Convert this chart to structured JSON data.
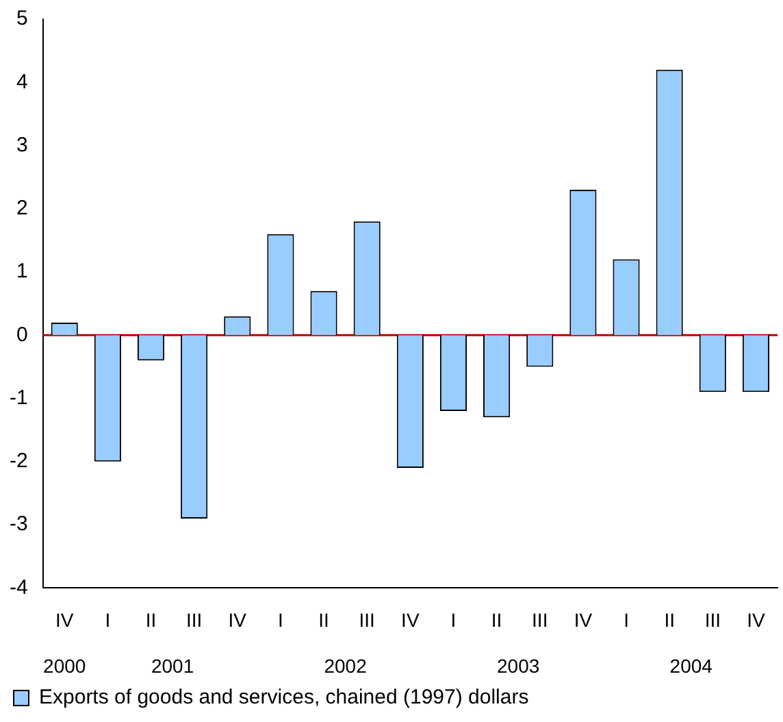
{
  "chart_data": {
    "type": "bar",
    "categories": [
      "IV",
      "I",
      "II",
      "III",
      "IV",
      "I",
      "II",
      "III",
      "IV",
      "I",
      "II",
      "III",
      "IV",
      "I",
      "II",
      "III",
      "IV"
    ],
    "series": [
      {
        "name": "Exports of goods and services, chained (1997) dollars",
        "color": "#99ccff",
        "values": [
          0.2,
          -2.0,
          -0.4,
          -2.9,
          0.3,
          1.6,
          0.7,
          1.8,
          -2.1,
          -1.2,
          -1.3,
          -0.5,
          2.3,
          1.2,
          4.2,
          -0.9,
          -0.9
        ]
      }
    ],
    "ylim": [
      -4,
      5
    ],
    "yticks": [
      -4,
      -3,
      -2,
      -1,
      0,
      1,
      2,
      3,
      4,
      5
    ],
    "grid": false,
    "legend": "bottom",
    "ref_lines": [
      {
        "axis": "y",
        "value": 0,
        "color": "#c00000"
      }
    ],
    "annotations": [
      "2000",
      "2001",
      "2002",
      "2003",
      "2004"
    ]
  }
}
